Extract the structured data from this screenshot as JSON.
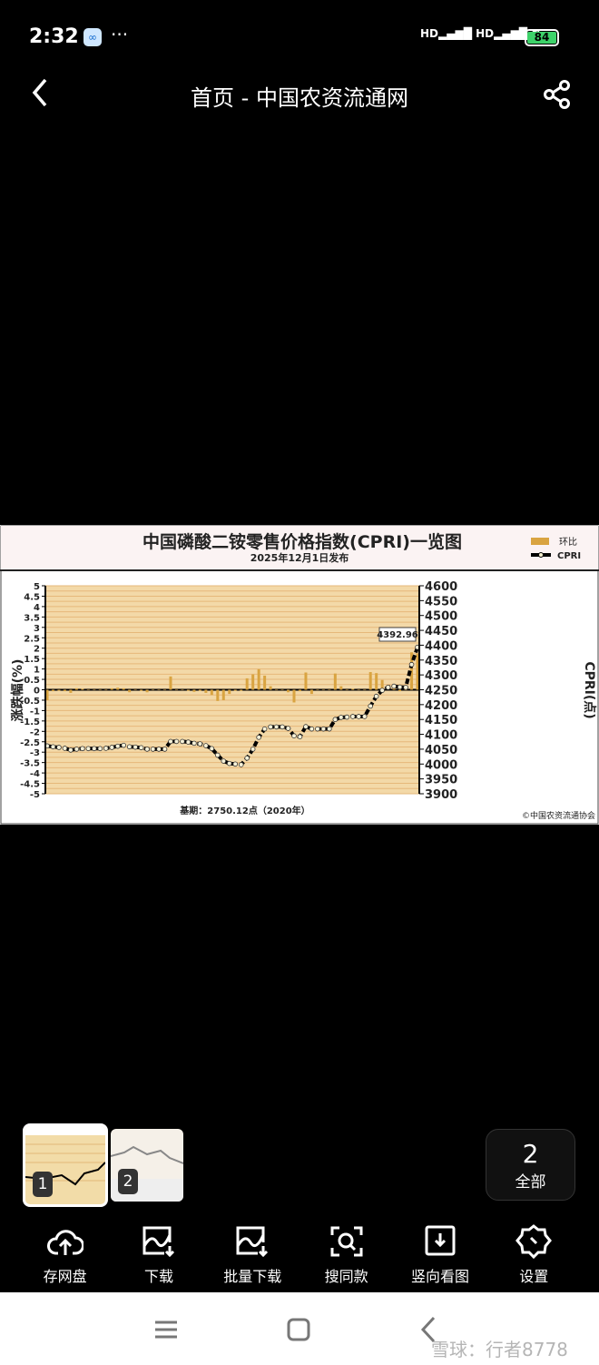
{
  "status_bar": {
    "time": "2:32",
    "network": "HD",
    "battery": "84"
  },
  "header": {
    "title": "首页 - 中国农资流通网",
    "back_icon": "chevron-left-icon",
    "share_icon": "share-icon"
  },
  "chart_image": {
    "title": "中国磷酸二铵零售价格指数(CPRI)一览图",
    "subtitle": "2025年12月1日发布",
    "legend": [
      {
        "label": "环比",
        "color": "#d9a441"
      },
      {
        "label": "CPRI",
        "color": "#000000"
      }
    ],
    "footer": "基期：2750.12点（2020年）",
    "copyright": "©中国农资流通协会",
    "callout": "4392.96"
  },
  "chart_data": {
    "type": "bar+line",
    "ylabel_left": "涨跌幅(%)",
    "ylabel_right": "CPRI(点)",
    "ylim_left": [
      -5,
      5
    ],
    "ylim_right": [
      3900,
      4600
    ],
    "yticks_left": [
      "5",
      "4.5",
      "4",
      "3.5",
      "3",
      "2.5",
      "2",
      "1.5",
      "1",
      "0.5",
      "0",
      "-0.5",
      "-1",
      "-1.5",
      "-2",
      "-2.5",
      "-3",
      "-3.5",
      "-4",
      "-4.5",
      "-5"
    ],
    "yticks_right": [
      "4600",
      "4550",
      "4500",
      "4450",
      "4400",
      "4350",
      "4300",
      "4250",
      "4200",
      "4150",
      "4100",
      "4050",
      "4000",
      "3950",
      "3900"
    ],
    "grid": true,
    "legend_placement": "top-right",
    "series": [
      {
        "name": "环比",
        "type": "bar",
        "color": "#d9a441",
        "values": [
          -0.5,
          -0.07,
          -0.05,
          -0.07,
          -0.15,
          0.07,
          0.05,
          0,
          0,
          0,
          0.02,
          0.07,
          0.1,
          0.07,
          -0.12,
          -0.02,
          -0.05,
          -0.12,
          0,
          0,
          0,
          0.64,
          0,
          0,
          -0.05,
          -0.1,
          -0.05,
          -0.15,
          -0.25,
          -0.54,
          -0.5,
          -0.2,
          -0.05,
          -0.05,
          0.55,
          0.74,
          0.99,
          0.68,
          0.17,
          0,
          0,
          -0.12,
          -0.61,
          -0.07,
          0.83,
          -0.2,
          0,
          0,
          0,
          0.78,
          0.17,
          0.02,
          0.05,
          0,
          0,
          0.85,
          0.8,
          0.47,
          0.23,
          0.09,
          -0.07,
          -0.02,
          1.8,
          1.74
        ]
      },
      {
        "name": "CPRI",
        "type": "line",
        "color": "#000000",
        "values": [
          4061,
          4058,
          4056,
          4053,
          4047,
          4050,
          4052,
          4052,
          4052,
          4052,
          4053,
          4056,
          4060,
          4063,
          4058,
          4057,
          4055,
          4050,
          4050,
          4050,
          4050,
          4076,
          4076,
          4076,
          4074,
          4070,
          4068,
          4062,
          4052,
          4030,
          4010,
          4002,
          4000,
          3998,
          4020,
          4050,
          4090,
          4118,
          4125,
          4125,
          4125,
          4120,
          4095,
          4092,
          4126,
          4118,
          4118,
          4118,
          4118,
          4150,
          4157,
          4158,
          4160,
          4160,
          4160,
          4195,
          4228,
          4248,
          4258,
          4262,
          4259,
          4258,
          4335,
          4393
        ]
      }
    ]
  },
  "thumbnails": [
    {
      "index": "1",
      "selected": true
    },
    {
      "index": "2",
      "selected": false
    }
  ],
  "all_button": {
    "count": "2",
    "label": "全部"
  },
  "toolbar": [
    {
      "label": "存网盘",
      "icon": "cloud-upload-icon"
    },
    {
      "label": "下载",
      "icon": "image-download-icon"
    },
    {
      "label": "批量下载",
      "icon": "batch-download-icon"
    },
    {
      "label": "搜同款",
      "icon": "scan-search-icon"
    },
    {
      "label": "竖向看图",
      "icon": "vertical-view-icon"
    },
    {
      "label": "设置",
      "icon": "settings-icon"
    }
  ],
  "watermark": "雪球：行者8778"
}
